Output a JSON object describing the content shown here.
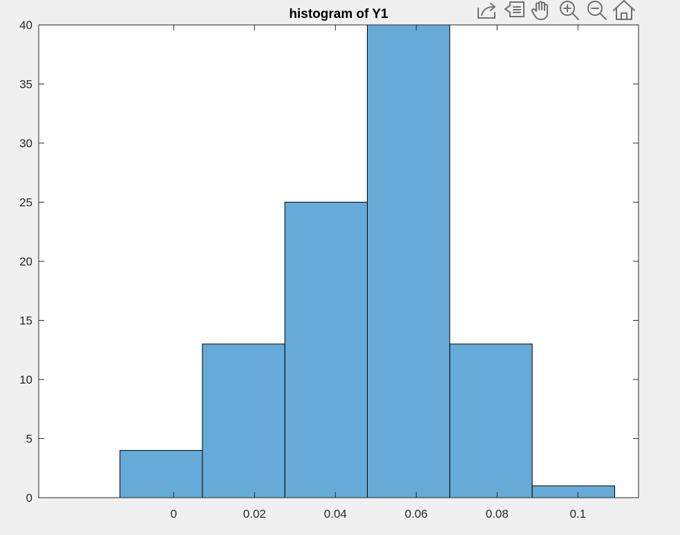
{
  "toolbar": {
    "icons": [
      "export-icon",
      "data-tips-icon",
      "pan-icon",
      "zoom-in-icon",
      "zoom-out-icon",
      "home-icon"
    ]
  },
  "colors": {
    "figure_background": "#f0f0f0",
    "axes_background": "#ffffff",
    "bar_fill": "#66aad8",
    "bar_edge": "#000000",
    "icon": "#6e6e6e"
  },
  "chart_data": {
    "type": "bar",
    "title": "histogram of Y1",
    "xlabel": "",
    "ylabel": "",
    "bin_edges": [
      -0.0133,
      0.0071,
      0.0275,
      0.0479,
      0.0683,
      0.0887,
      0.1091
    ],
    "values": [
      4,
      13,
      25,
      40,
      13,
      1
    ],
    "xlim": [
      -0.0334,
      0.115
    ],
    "ylim": [
      0,
      40
    ],
    "xticks": [
      0,
      0.02,
      0.04,
      0.06,
      0.08,
      0.1
    ],
    "xtick_labels": [
      "0",
      "0.02",
      "0.04",
      "0.06",
      "0.08",
      "0.1"
    ],
    "yticks": [
      0,
      5,
      10,
      15,
      20,
      25,
      30,
      35,
      40
    ],
    "ytick_labels": [
      "0",
      "5",
      "10",
      "15",
      "20",
      "25",
      "30",
      "35",
      "40"
    ],
    "grid": false,
    "legend": "none"
  }
}
